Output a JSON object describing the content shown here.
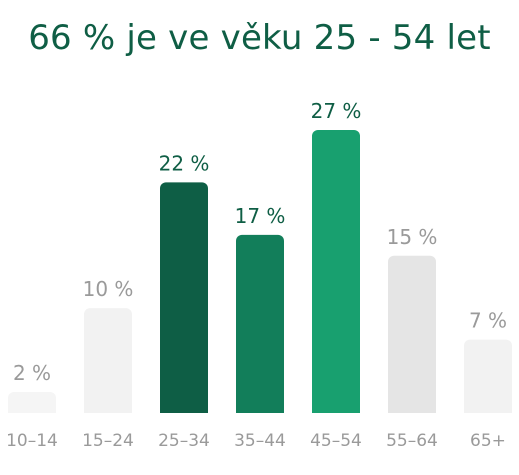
{
  "title": "66 % je ve věku 25 - 54 let",
  "chart_data": {
    "type": "bar",
    "title": "66 % je ve věku 25 - 54 let",
    "categories": [
      "10–14",
      "15–24",
      "25–34",
      "35–44",
      "45–54",
      "55–64",
      "65+"
    ],
    "values": [
      2,
      10,
      22,
      17,
      27,
      15,
      7
    ],
    "value_labels": [
      "2 %",
      "10 %",
      "22 %",
      "17 %",
      "27 %",
      "15 %",
      "7 %"
    ],
    "ylim": [
      0,
      27
    ],
    "grid": false,
    "bar_colors": [
      "#f5f5f5",
      "#f2f2f2",
      "#0e5e45",
      "#127e5a",
      "#18a06f",
      "#e5e5e5",
      "#f2f2f2"
    ],
    "label_colors": [
      "#9a9a9a",
      "#9a9a9a",
      "#0f5e45",
      "#0f5e45",
      "#0f5e45",
      "#9a9a9a",
      "#9a9a9a"
    ]
  }
}
